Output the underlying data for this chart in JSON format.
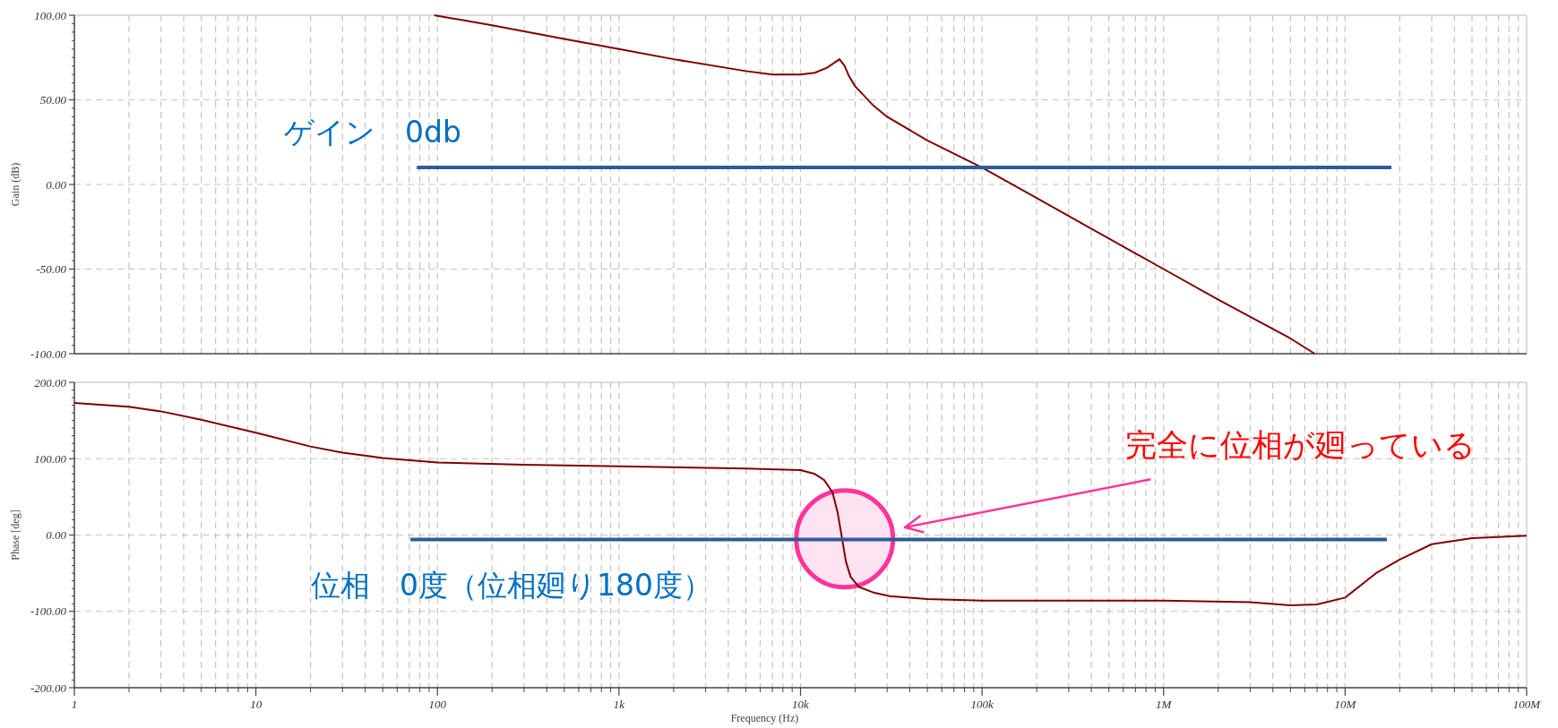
{
  "chart_data": [
    {
      "type": "line",
      "ylabel": "Gain (dB)",
      "log": "x",
      "grid": true,
      "tick_labels": "y",
      "xlim": [
        1,
        100000000
      ],
      "ylim": [
        -100,
        100
      ],
      "xticks": [
        {
          "value": 1,
          "label": null
        },
        {
          "value": 10,
          "label": null
        },
        {
          "value": 100,
          "label": null
        },
        {
          "value": 1000,
          "label": null
        },
        {
          "value": 10000,
          "label": null
        },
        {
          "value": 100000,
          "label": null
        },
        {
          "value": 1000000,
          "label": null
        },
        {
          "value": 10000000,
          "label": null
        },
        {
          "value": 100000000,
          "label": null
        }
      ],
      "yticks": [
        {
          "value": -100,
          "label": "-100.00"
        },
        {
          "value": -50,
          "label": "-50.00"
        },
        {
          "value": 0,
          "label": "0.00"
        },
        {
          "value": 50,
          "label": "50.00"
        },
        {
          "value": 100,
          "label": "100.00"
        }
      ],
      "series": [
        {
          "color": "#7f0000",
          "x": [
            96,
            200,
            500,
            1000,
            2000,
            5000,
            7000,
            10000,
            12000,
            14000,
            16400,
            17500,
            18500,
            20000,
            25000,
            30000,
            50000,
            100000,
            200000,
            500000,
            1000000,
            2000000,
            5000000,
            6800000
          ],
          "values": [
            100,
            94,
            86,
            80,
            74,
            67,
            65,
            65,
            66,
            69,
            74,
            70,
            64,
            58,
            47,
            40,
            26,
            10,
            -8,
            -32,
            -50,
            -68,
            -91,
            -100
          ]
        },
        {
          "color": "#2e5c96",
          "x": [
            77,
            18000000
          ],
          "values": [
            10,
            10
          ]
        }
      ],
      "annotations": [
        "ゲイン　0db"
      ]
    },
    {
      "type": "line",
      "xlabel": "Frequency (Hz)",
      "ylabel": "Phase [deg]",
      "log": "x",
      "grid": true,
      "xlim": [
        1,
        100000000
      ],
      "ylim": [
        -200,
        200
      ],
      "xticks": [
        {
          "value": 1,
          "label": "1"
        },
        {
          "value": 10,
          "label": "10"
        },
        {
          "value": 100,
          "label": "100"
        },
        {
          "value": 1000,
          "label": "1k"
        },
        {
          "value": 10000,
          "label": "10k"
        },
        {
          "value": 100000,
          "label": "100k"
        },
        {
          "value": 1000000,
          "label": "1M"
        },
        {
          "value": 10000000,
          "label": "10M"
        },
        {
          "value": 100000000,
          "label": "100M"
        }
      ],
      "yticks": [
        {
          "value": -200,
          "label": "-200.00"
        },
        {
          "value": -100,
          "label": "-100.00"
        },
        {
          "value": 0,
          "label": "0.00"
        },
        {
          "value": 100,
          "label": "100.00"
        },
        {
          "value": 200,
          "label": "200.00"
        }
      ],
      "series": [
        {
          "color": "#7f0000",
          "x": [
            1,
            2,
            3,
            5,
            10,
            20,
            30,
            50,
            100,
            300,
            1000,
            5000,
            10000,
            12000,
            13500,
            15000,
            16000,
            16900,
            17800,
            18900,
            21000,
            25000,
            31000,
            50000,
            100000,
            1000000,
            3000000,
            5000000,
            7000000,
            10000000,
            15000000,
            20000000,
            30000000,
            50000000,
            100000000
          ],
          "values": [
            173,
            168,
            162,
            151,
            134,
            116,
            108,
            101,
            95,
            92,
            90,
            87,
            85,
            80,
            72,
            56,
            30,
            -3,
            -35,
            -55,
            -68,
            -75,
            -80,
            -84,
            -86,
            -86,
            -88,
            -92,
            -91,
            -82,
            -49,
            -32,
            -12,
            -4,
            -1
          ]
        },
        {
          "color": "#2e5c96",
          "x": [
            71,
            17000000
          ],
          "values": [
            -6,
            -6
          ]
        }
      ],
      "annotations": [
        "位相　0度（位相廻り180度）",
        "完全に位相が廻っている"
      ]
    }
  ]
}
